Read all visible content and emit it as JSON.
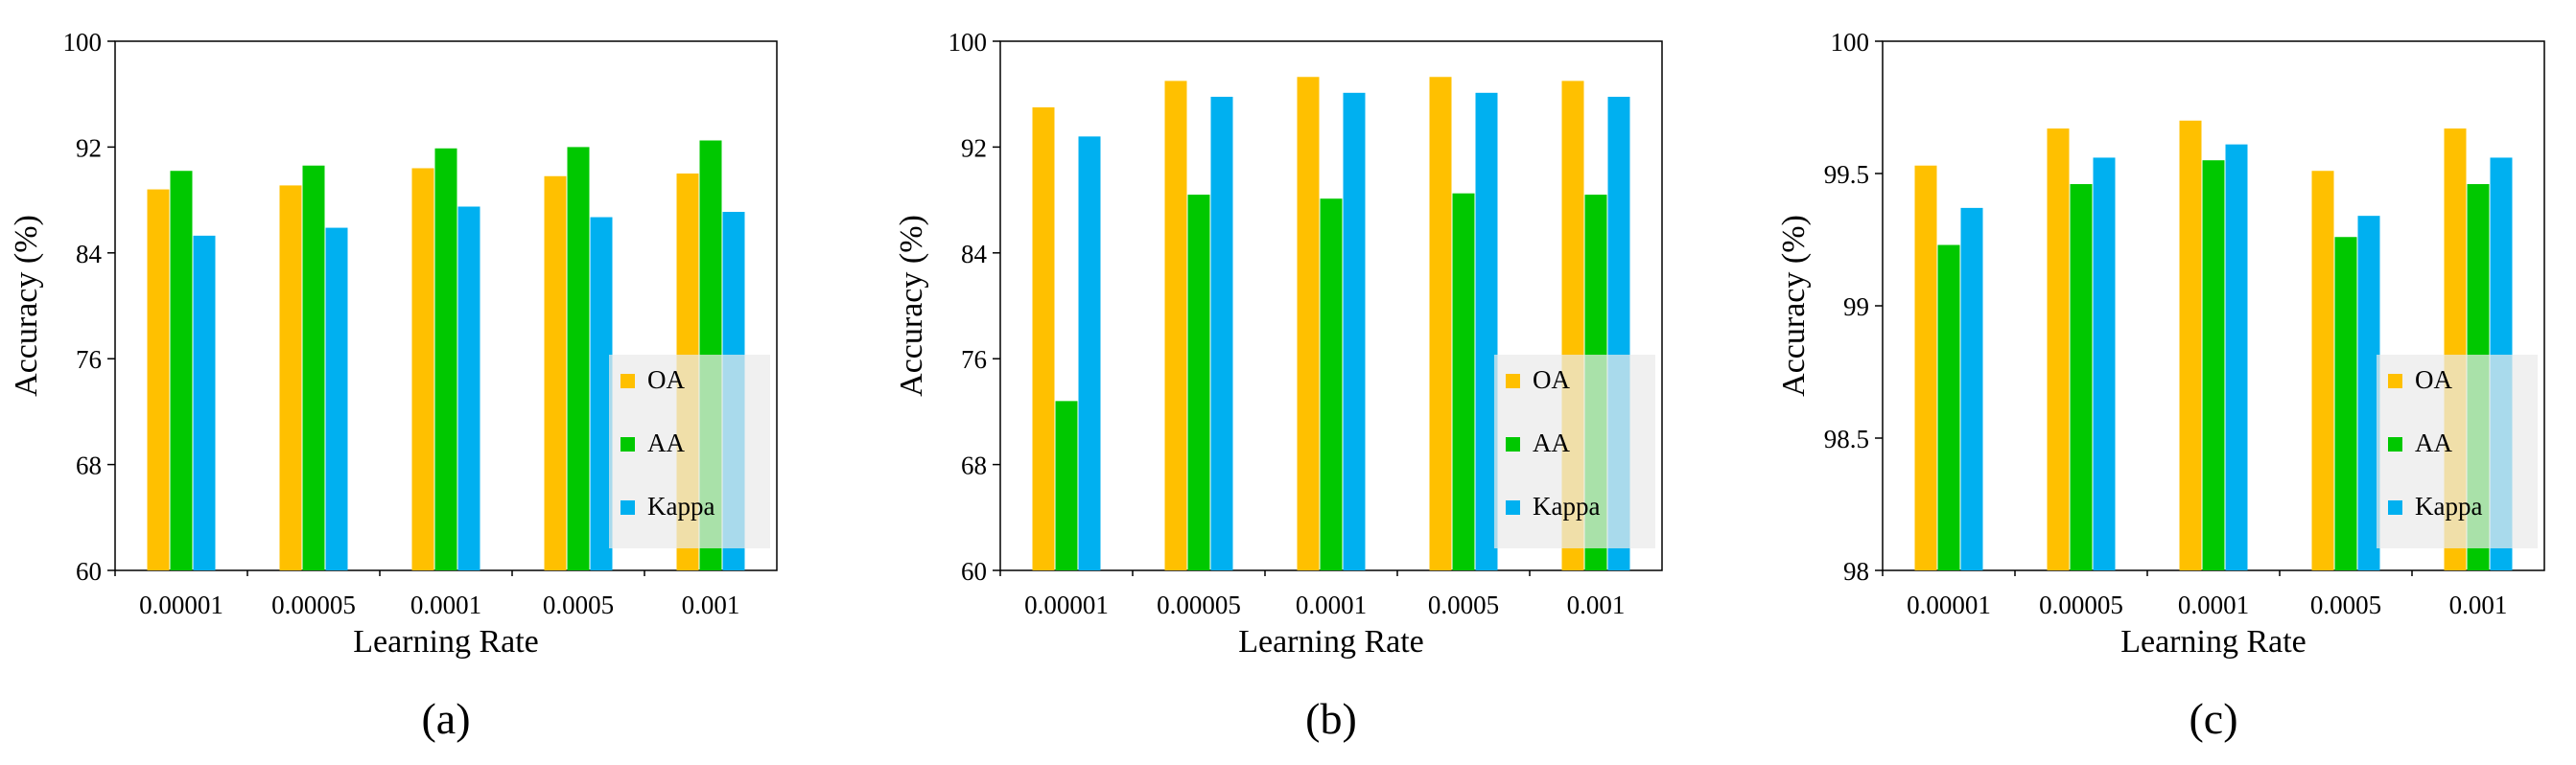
{
  "colors": {
    "OA": "#FFC000",
    "AA": "#00C800",
    "Kappa": "#00B0F0",
    "legend_bg": "#EAEAEA"
  },
  "chart_data": [
    {
      "type": "bar",
      "panel_label": "(a)",
      "xlabel": "Learning Rate",
      "ylabel": "Accuracy (%)",
      "ylim": [
        60,
        100
      ],
      "yticks": [
        "60",
        "68",
        "76",
        "84",
        "92",
        "100"
      ],
      "categories": [
        "0.00001",
        "0.00005",
        "0.0001",
        "0.0005",
        "0.001"
      ],
      "series": [
        {
          "name": "OA",
          "values": [
            88.8,
            89.1,
            90.4,
            89.8,
            90.0
          ]
        },
        {
          "name": "AA",
          "values": [
            90.2,
            90.6,
            91.9,
            92.0,
            92.5
          ]
        },
        {
          "name": "Kappa",
          "values": [
            85.3,
            85.9,
            87.5,
            86.7,
            87.1
          ]
        }
      ],
      "legend_position": "bottom-right"
    },
    {
      "type": "bar",
      "panel_label": "(b)",
      "xlabel": "Learning Rate",
      "ylabel": "Accuracy (%)",
      "ylim": [
        60,
        100
      ],
      "yticks": [
        "60",
        "68",
        "76",
        "84",
        "92",
        "100"
      ],
      "categories": [
        "0.00001",
        "0.00005",
        "0.0001",
        "0.0005",
        "0.001"
      ],
      "series": [
        {
          "name": "OA",
          "values": [
            95.0,
            97.0,
            97.3,
            97.3,
            97.0
          ]
        },
        {
          "name": "AA",
          "values": [
            72.8,
            88.4,
            88.1,
            88.5,
            88.4
          ]
        },
        {
          "name": "Kappa",
          "values": [
            92.8,
            95.8,
            96.1,
            96.1,
            95.8
          ]
        }
      ],
      "legend_position": "bottom-right"
    },
    {
      "type": "bar",
      "panel_label": "(c)",
      "xlabel": "Learning Rate",
      "ylabel": "Accuracy (%)",
      "ylim": [
        98,
        100
      ],
      "yticks": [
        "98",
        "98.5",
        "99",
        "99.5",
        "100"
      ],
      "categories": [
        "0.00001",
        "0.00005",
        "0.0001",
        "0.0005",
        "0.001"
      ],
      "series": [
        {
          "name": "OA",
          "values": [
            99.53,
            99.67,
            99.7,
            99.51,
            99.67
          ]
        },
        {
          "name": "AA",
          "values": [
            99.23,
            99.46,
            99.55,
            99.26,
            99.46
          ]
        },
        {
          "name": "Kappa",
          "values": [
            99.37,
            99.56,
            99.61,
            99.34,
            99.56
          ]
        }
      ],
      "legend_position": "bottom-right"
    }
  ]
}
